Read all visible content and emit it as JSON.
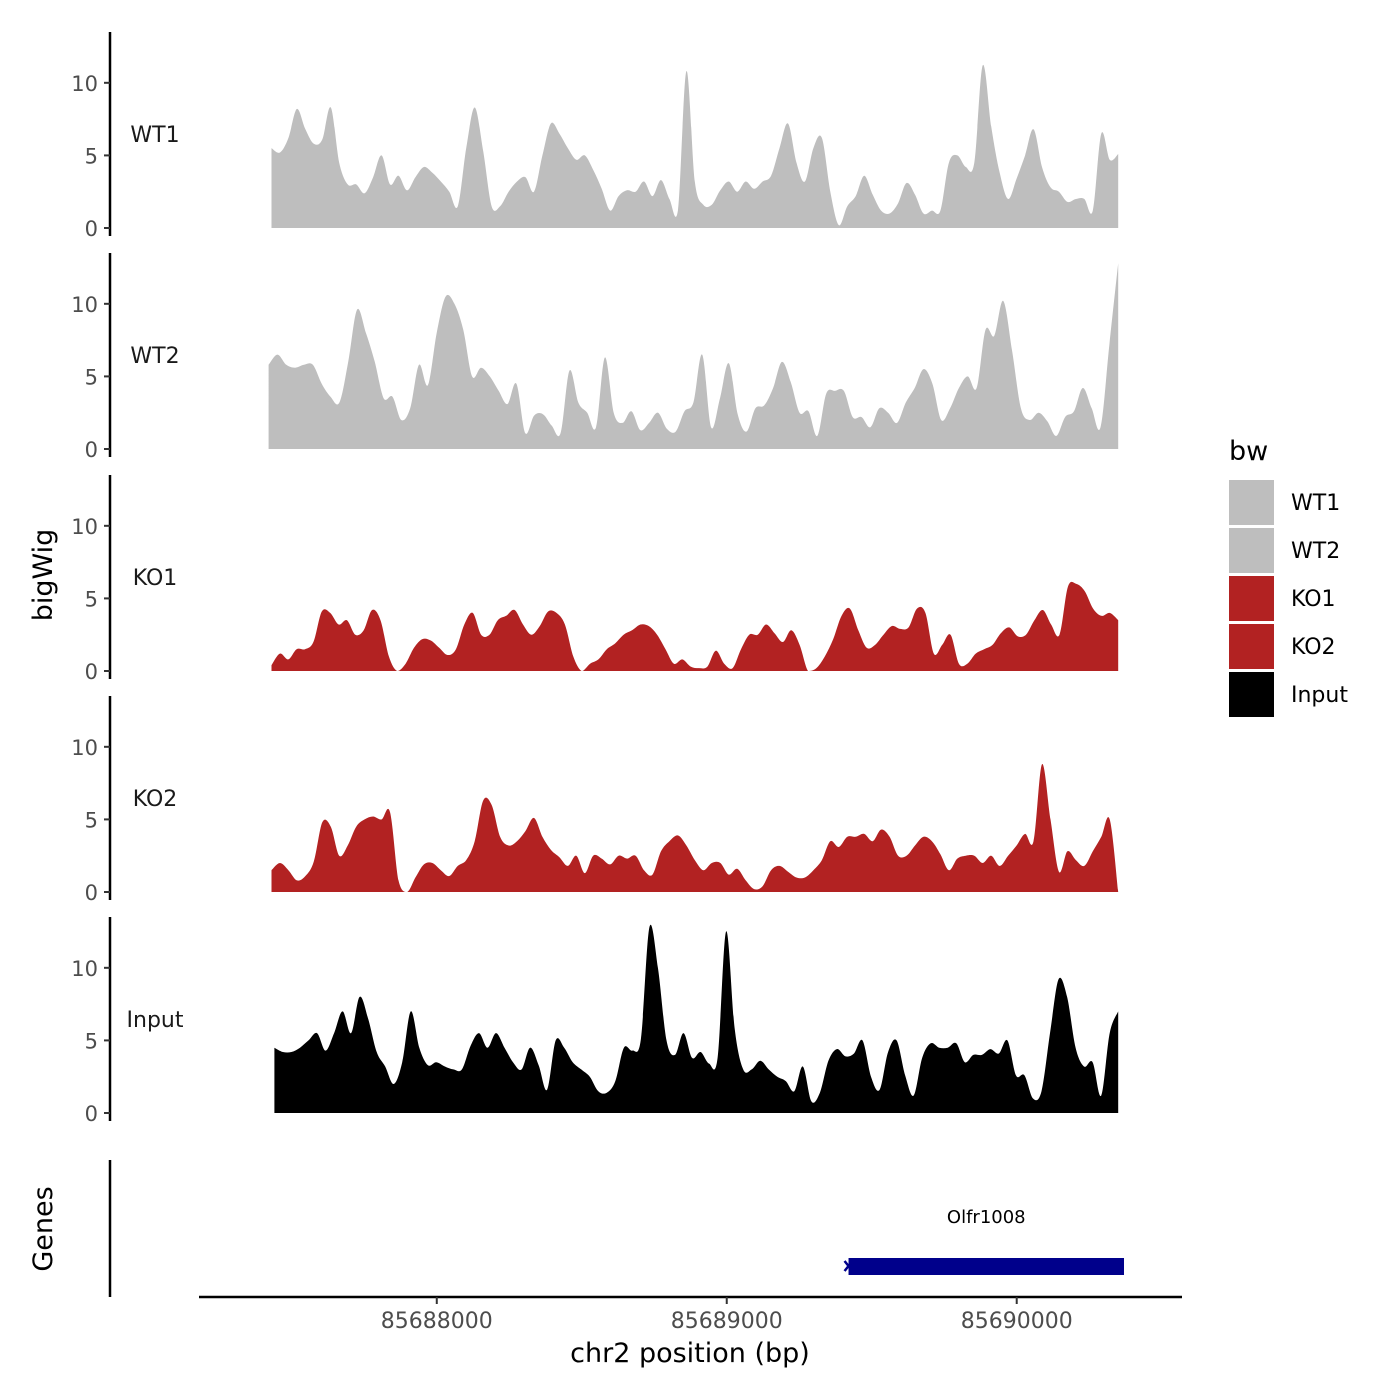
{
  "chart_data": {
    "type": "area",
    "ylabel": "bigWig",
    "xlabel": "chr2 position (bp)",
    "x_ticks": [
      85688000,
      85689000,
      85690000
    ],
    "x_tick_labels": [
      "85688000",
      "85689000",
      "85690000"
    ],
    "x_range": [
      85687180,
      85690570
    ],
    "y_ticks": [
      0,
      5,
      10
    ],
    "y_tick_labels": [
      "0",
      "5",
      "10"
    ],
    "ylim": [
      0,
      13.5
    ],
    "grid": false,
    "legend": {
      "title": "bw",
      "placement": "right",
      "entries": [
        {
          "label": "WT1",
          "color": "#bebebe"
        },
        {
          "label": "WT2",
          "color": "#bebebe"
        },
        {
          "label": "KO1",
          "color": "#b22222"
        },
        {
          "label": "KO2",
          "color": "#b22222"
        },
        {
          "label": "Input",
          "color": "#000000"
        }
      ]
    },
    "tracks": [
      {
        "name": "WT1",
        "color": "#bebebe",
        "x_start": 85687430,
        "x_end": 85690350,
        "values": [
          5.5,
          5.2,
          6.2,
          8.2,
          6.8,
          5.8,
          6.1,
          8.3,
          4.5,
          3,
          3,
          2.4,
          3.5,
          5,
          3,
          3.6,
          2.6,
          3.5,
          4.2,
          3.8,
          3.2,
          2.5,
          1.5,
          5.5,
          8.3,
          5.3,
          1.5,
          1.5,
          2.5,
          3.2,
          3.5,
          2.5,
          5,
          7.2,
          6.5,
          5.5,
          4.7,
          5,
          4,
          2.7,
          1.2,
          2.2,
          2.6,
          2.5,
          3.2,
          2.2,
          3.3,
          2,
          1.2,
          10.8,
          3.2,
          1.6,
          1.6,
          2.6,
          3.2,
          2.5,
          3.2,
          2.7,
          3.2,
          3.6,
          5.5,
          7.2,
          4.5,
          3.2,
          5.5,
          6.2,
          2.5,
          0.2,
          1.5,
          2.2,
          3.6,
          2.3,
          1.2,
          1,
          1.7,
          3.1,
          2.3,
          1,
          1.2,
          1.2,
          4.5,
          5,
          4.2,
          4.5,
          11.2,
          7,
          3.8,
          2,
          3.4,
          5,
          6.8,
          4.2,
          2.8,
          2.5,
          1.8,
          2,
          2,
          1.2,
          6.5,
          4.7,
          5.1
        ]
      },
      {
        "name": "WT2",
        "color": "#bebebe",
        "x_start": 85687420,
        "x_end": 85690350,
        "values": [
          5.8,
          6.5,
          5.8,
          5.6,
          5.8,
          5.8,
          4.5,
          3.6,
          3.2,
          6,
          9.6,
          8,
          6,
          3.5,
          3.6,
          2,
          2.8,
          5.8,
          4.4,
          8,
          10.5,
          10,
          8.2,
          5,
          5.6,
          5,
          4,
          3.1,
          4.5,
          1.1,
          2.3,
          2.4,
          1.6,
          1.1,
          5.4,
          3.2,
          2.5,
          1.5,
          6.3,
          2.5,
          1.8,
          2.6,
          1.3,
          1.8,
          2.5,
          1.4,
          1.2,
          2.6,
          3.2,
          6.5,
          1.5,
          3.5,
          5.9,
          2.4,
          1.2,
          2.8,
          3,
          4.2,
          6,
          4.6,
          2.5,
          2.6,
          0.9,
          3.8,
          4,
          4,
          2.2,
          2.2,
          1.5,
          2.8,
          2.5,
          1.8,
          3.2,
          4.2,
          5.5,
          4.5,
          2,
          2.8,
          4.2,
          5,
          4.2,
          8.2,
          7.8,
          10.2,
          6.8,
          2.8,
          2,
          2.5,
          1.9,
          0.9,
          2.2,
          2.6,
          4.2,
          2.8,
          1.5,
          7.2,
          12.8
        ]
      },
      {
        "name": "KO1",
        "color": "#b22222",
        "x_start": 85687430,
        "x_end": 85690350,
        "values": [
          0.4,
          1.2,
          0.8,
          1.5,
          1.5,
          2,
          4.1,
          4,
          3.2,
          3.5,
          2.5,
          2.8,
          4.2,
          3.5,
          1,
          0,
          0.5,
          1.6,
          2.2,
          2.1,
          1.6,
          1.1,
          1.5,
          3.2,
          4,
          2.5,
          2.5,
          3.5,
          3.8,
          4.2,
          3.2,
          2.5,
          3.1,
          4.1,
          4,
          3.2,
          1,
          0,
          0.5,
          0.8,
          1.5,
          1.9,
          2.5,
          2.8,
          3.2,
          3.1,
          2.5,
          1.5,
          0.5,
          0.8,
          0.3,
          0.2,
          0.3,
          1.4,
          0.5,
          0.2,
          1.5,
          2.5,
          2.5,
          3.2,
          2.6,
          2,
          2.8,
          1.8,
          0,
          0.2,
          1,
          2.2,
          3.8,
          4.3,
          2.8,
          1.6,
          1.8,
          2.5,
          3.1,
          2.9,
          3,
          4.3,
          4,
          1.2,
          1.8,
          2.5,
          0.5,
          0.5,
          1.2,
          1.5,
          1.8,
          2.6,
          3,
          2.4,
          2.5,
          3.5,
          4.2,
          3.2,
          2.5,
          5.8,
          6,
          5.5,
          4.3,
          3.8,
          4,
          3.5
        ]
      },
      {
        "name": "KO2",
        "color": "#b22222",
        "x_start": 85687430,
        "x_end": 85690350,
        "values": [
          1.5,
          2,
          1.5,
          0.8,
          1.1,
          2.1,
          4.8,
          4.5,
          2.5,
          3.2,
          4.5,
          5,
          5.2,
          5,
          5.5,
          0.8,
          0,
          1,
          1.9,
          2,
          1.5,
          1.1,
          1.8,
          2.2,
          3.5,
          6.3,
          6,
          3.8,
          3.2,
          3.5,
          4.2,
          5.1,
          3.8,
          2.9,
          2.4,
          1.8,
          2.5,
          1.3,
          2.5,
          2.3,
          1.9,
          2.5,
          2.3,
          2.5,
          1.5,
          1.2,
          2.8,
          3.5,
          3.9,
          3.2,
          2.2,
          1.5,
          2,
          2,
          1.2,
          1.6,
          0.8,
          0.2,
          0.4,
          1.5,
          1.8,
          1.4,
          1,
          1,
          1.5,
          2.2,
          3.5,
          3.1,
          3.8,
          3.8,
          4,
          3.5,
          4.3,
          3.8,
          2.5,
          2.5,
          3.2,
          3.8,
          3.5,
          2.6,
          1.5,
          2.3,
          2.5,
          2.5,
          2,
          2.5,
          1.8,
          2.5,
          3.2,
          4,
          3.5,
          8.8,
          5,
          1.4,
          2.8,
          2.2,
          1.8,
          2.8,
          3.8,
          5,
          0
        ]
      },
      {
        "name": "Input",
        "color": "#000000",
        "x_start": 85687440,
        "x_end": 85690350,
        "values": [
          4.5,
          4.2,
          4.2,
          4.5,
          5,
          5.5,
          4.3,
          5.5,
          7,
          5.5,
          8,
          6.5,
          4.2,
          3.2,
          2,
          3.5,
          7,
          4.5,
          3.3,
          3.5,
          3.2,
          3,
          3,
          4.6,
          5.5,
          4.5,
          5.5,
          4.5,
          3.5,
          3,
          4.5,
          3.3,
          1.6,
          5,
          4.5,
          3.5,
          3,
          2.5,
          1.5,
          1.4,
          2.2,
          4.5,
          4.3,
          5.1,
          12.8,
          10,
          5,
          4,
          5.5,
          3.8,
          4.2,
          3.4,
          3.8,
          12.5,
          5.8,
          3,
          3,
          3.6,
          3,
          2.5,
          2.2,
          1.5,
          3.2,
          0.8,
          1.4,
          3.6,
          4.4,
          3.9,
          4.1,
          5,
          2.5,
          1.6,
          4.2,
          5,
          2.6,
          1.2,
          3.8,
          4.8,
          4.5,
          4.5,
          4.8,
          3.5,
          4,
          4,
          4.4,
          4.1,
          5,
          2.6,
          2.6,
          1,
          1.5,
          5.5,
          9.2,
          8,
          4.5,
          3.2,
          3.5,
          1.2,
          5.5,
          7
        ]
      }
    ],
    "genes_panel": {
      "ylabel": "Genes",
      "genes": [
        {
          "name": "Olfr1008",
          "start": 85689420,
          "end": 85690370,
          "color": "#00008b"
        }
      ]
    }
  }
}
